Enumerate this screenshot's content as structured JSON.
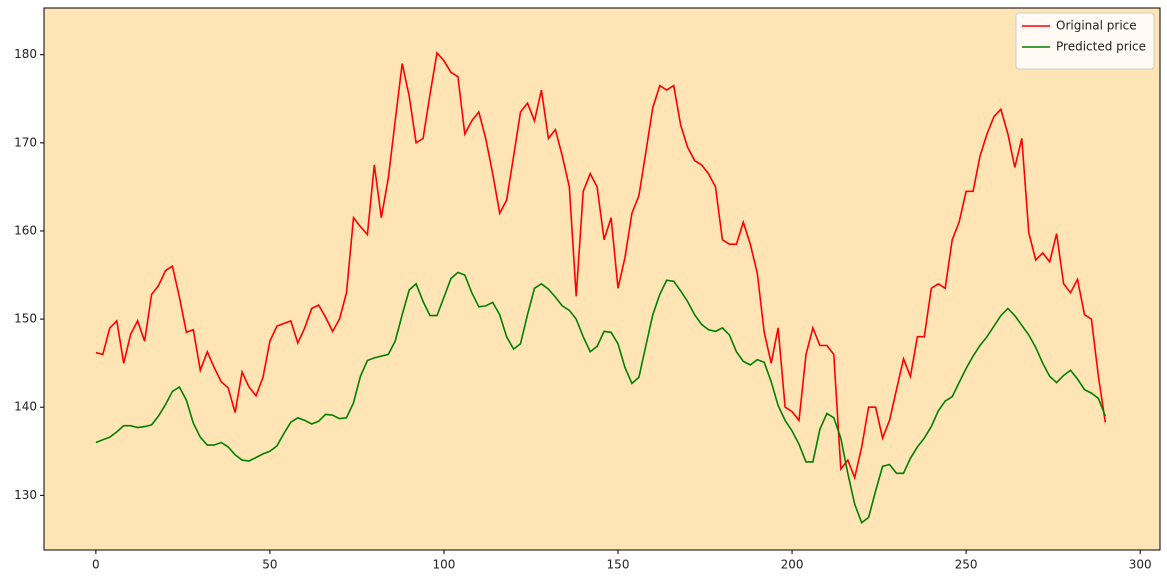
{
  "chart_data": {
    "type": "line",
    "x": [
      0,
      2,
      4,
      6,
      8,
      10,
      12,
      14,
      16,
      18,
      20,
      22,
      24,
      26,
      28,
      30,
      32,
      34,
      36,
      38,
      40,
      42,
      44,
      46,
      48,
      50,
      52,
      54,
      56,
      58,
      60,
      62,
      64,
      66,
      68,
      70,
      72,
      74,
      76,
      78,
      80,
      82,
      84,
      86,
      88,
      90,
      92,
      94,
      96,
      98,
      100,
      102,
      104,
      106,
      108,
      110,
      112,
      114,
      116,
      118,
      120,
      122,
      124,
      126,
      128,
      130,
      132,
      134,
      136,
      138,
      140,
      142,
      144,
      146,
      148,
      150,
      152,
      154,
      156,
      158,
      160,
      162,
      164,
      166,
      168,
      170,
      172,
      174,
      176,
      178,
      180,
      182,
      184,
      186,
      188,
      190,
      192,
      194,
      196,
      198,
      200,
      202,
      204,
      206,
      208,
      210,
      212,
      214,
      216,
      218,
      220,
      222,
      224,
      226,
      228,
      230,
      232,
      234,
      236,
      238,
      240,
      242,
      244,
      246,
      248,
      250,
      252,
      254,
      256,
      258,
      260,
      262,
      264,
      266,
      268,
      270,
      272,
      274,
      276,
      278,
      280,
      282,
      284,
      286,
      288,
      290
    ],
    "series": [
      {
        "name": "Original price",
        "color": "#ff0000",
        "values": [
          146.2,
          146.0,
          149.0,
          149.8,
          145.0,
          148.3,
          149.8,
          147.5,
          152.8,
          153.8,
          155.5,
          156.0,
          152.5,
          148.5,
          148.8,
          144.2,
          146.3,
          144.5,
          142.9,
          142.2,
          139.4,
          144.0,
          142.3,
          141.3,
          143.4,
          147.5,
          149.2,
          149.5,
          149.8,
          147.3,
          149.0,
          151.2,
          151.6,
          150.2,
          148.6,
          150.0,
          153.0,
          161.5,
          160.5,
          159.6,
          167.5,
          161.5,
          166.0,
          172.5,
          179.0,
          175.3,
          170.0,
          170.5,
          175.5,
          180.2,
          179.3,
          178.0,
          177.5,
          171.0,
          172.5,
          173.5,
          170.5,
          166.5,
          162.0,
          163.5,
          168.5,
          173.5,
          174.5,
          172.5,
          176.0,
          170.5,
          171.5,
          168.5,
          165.0,
          152.6,
          164.5,
          166.5,
          165.0,
          159.0,
          161.5,
          153.5,
          157.0,
          162.0,
          164.0,
          169.0,
          174.0,
          176.5,
          176.0,
          176.5,
          172.0,
          169.5,
          168.0,
          167.5,
          166.5,
          165.0,
          159.0,
          158.5,
          158.5,
          161.0,
          158.5,
          155.2,
          148.5,
          145.0,
          149.0,
          140.0,
          139.5,
          138.5,
          146.0,
          149.0,
          147.0,
          147.0,
          146.0,
          133.0,
          134.0,
          132.0,
          135.5,
          140.0,
          140.0,
          136.5,
          138.5,
          142.0,
          145.5,
          143.5,
          148.0,
          148.0,
          153.5,
          154.0,
          153.5,
          159.0,
          161.0,
          164.5,
          164.5,
          168.5,
          171.0,
          173.0,
          173.8,
          171.0,
          167.2,
          170.5,
          159.8,
          156.7,
          157.5,
          156.5,
          159.7,
          154.0,
          153.0,
          154.5,
          150.5,
          150.0,
          143.5,
          138.3
        ]
      },
      {
        "name": "Predicted price",
        "color": "#008000",
        "values": [
          136.0,
          136.3,
          136.6,
          137.2,
          137.9,
          137.9,
          137.7,
          137.8,
          138.0,
          139.0,
          140.3,
          141.8,
          142.3,
          140.8,
          138.2,
          136.6,
          135.7,
          135.7,
          136.0,
          135.5,
          134.6,
          134.0,
          133.9,
          134.3,
          134.7,
          135.0,
          135.6,
          137.0,
          138.3,
          138.8,
          138.5,
          138.1,
          138.4,
          139.2,
          139.1,
          138.7,
          138.8,
          140.5,
          143.5,
          145.3,
          145.6,
          145.8,
          146.0,
          147.5,
          150.5,
          153.3,
          154.0,
          152.0,
          150.4,
          150.4,
          152.5,
          154.6,
          155.3,
          155.0,
          153.0,
          151.4,
          151.5,
          151.9,
          150.5,
          148.0,
          146.6,
          147.2,
          150.5,
          153.5,
          154.0,
          153.4,
          152.5,
          151.5,
          151.0,
          150.0,
          148.0,
          146.3,
          146.9,
          148.6,
          148.5,
          147.2,
          144.5,
          142.7,
          143.4,
          147.0,
          150.5,
          152.8,
          154.4,
          154.3,
          153.2,
          152.0,
          150.5,
          149.4,
          148.8,
          148.6,
          149.0,
          148.2,
          146.3,
          145.2,
          144.8,
          145.4,
          145.1,
          142.9,
          140.2,
          138.5,
          137.3,
          135.8,
          133.8,
          133.8,
          137.5,
          139.3,
          138.8,
          136.5,
          132.5,
          129.0,
          126.9,
          127.5,
          130.5,
          133.3,
          133.5,
          132.5,
          132.5,
          134.2,
          135.5,
          136.5,
          137.8,
          139.6,
          140.7,
          141.2,
          142.8,
          144.4,
          145.8,
          147.0,
          148.0,
          149.2,
          150.4,
          151.2,
          150.4,
          149.3,
          148.2,
          146.8,
          145.0,
          143.5,
          142.8,
          143.6,
          144.2,
          143.2,
          142.0,
          141.6,
          141.0,
          139.0
        ]
      }
    ],
    "xlim": [
      -14.9,
      305.7
    ],
    "ylim": [
      123.8,
      185.3
    ],
    "xticks": [
      0,
      50,
      100,
      150,
      200,
      250,
      300
    ],
    "yticks": [
      130,
      140,
      150,
      160,
      170,
      180
    ],
    "background": "#ffe4b5",
    "legend": "upper right"
  }
}
